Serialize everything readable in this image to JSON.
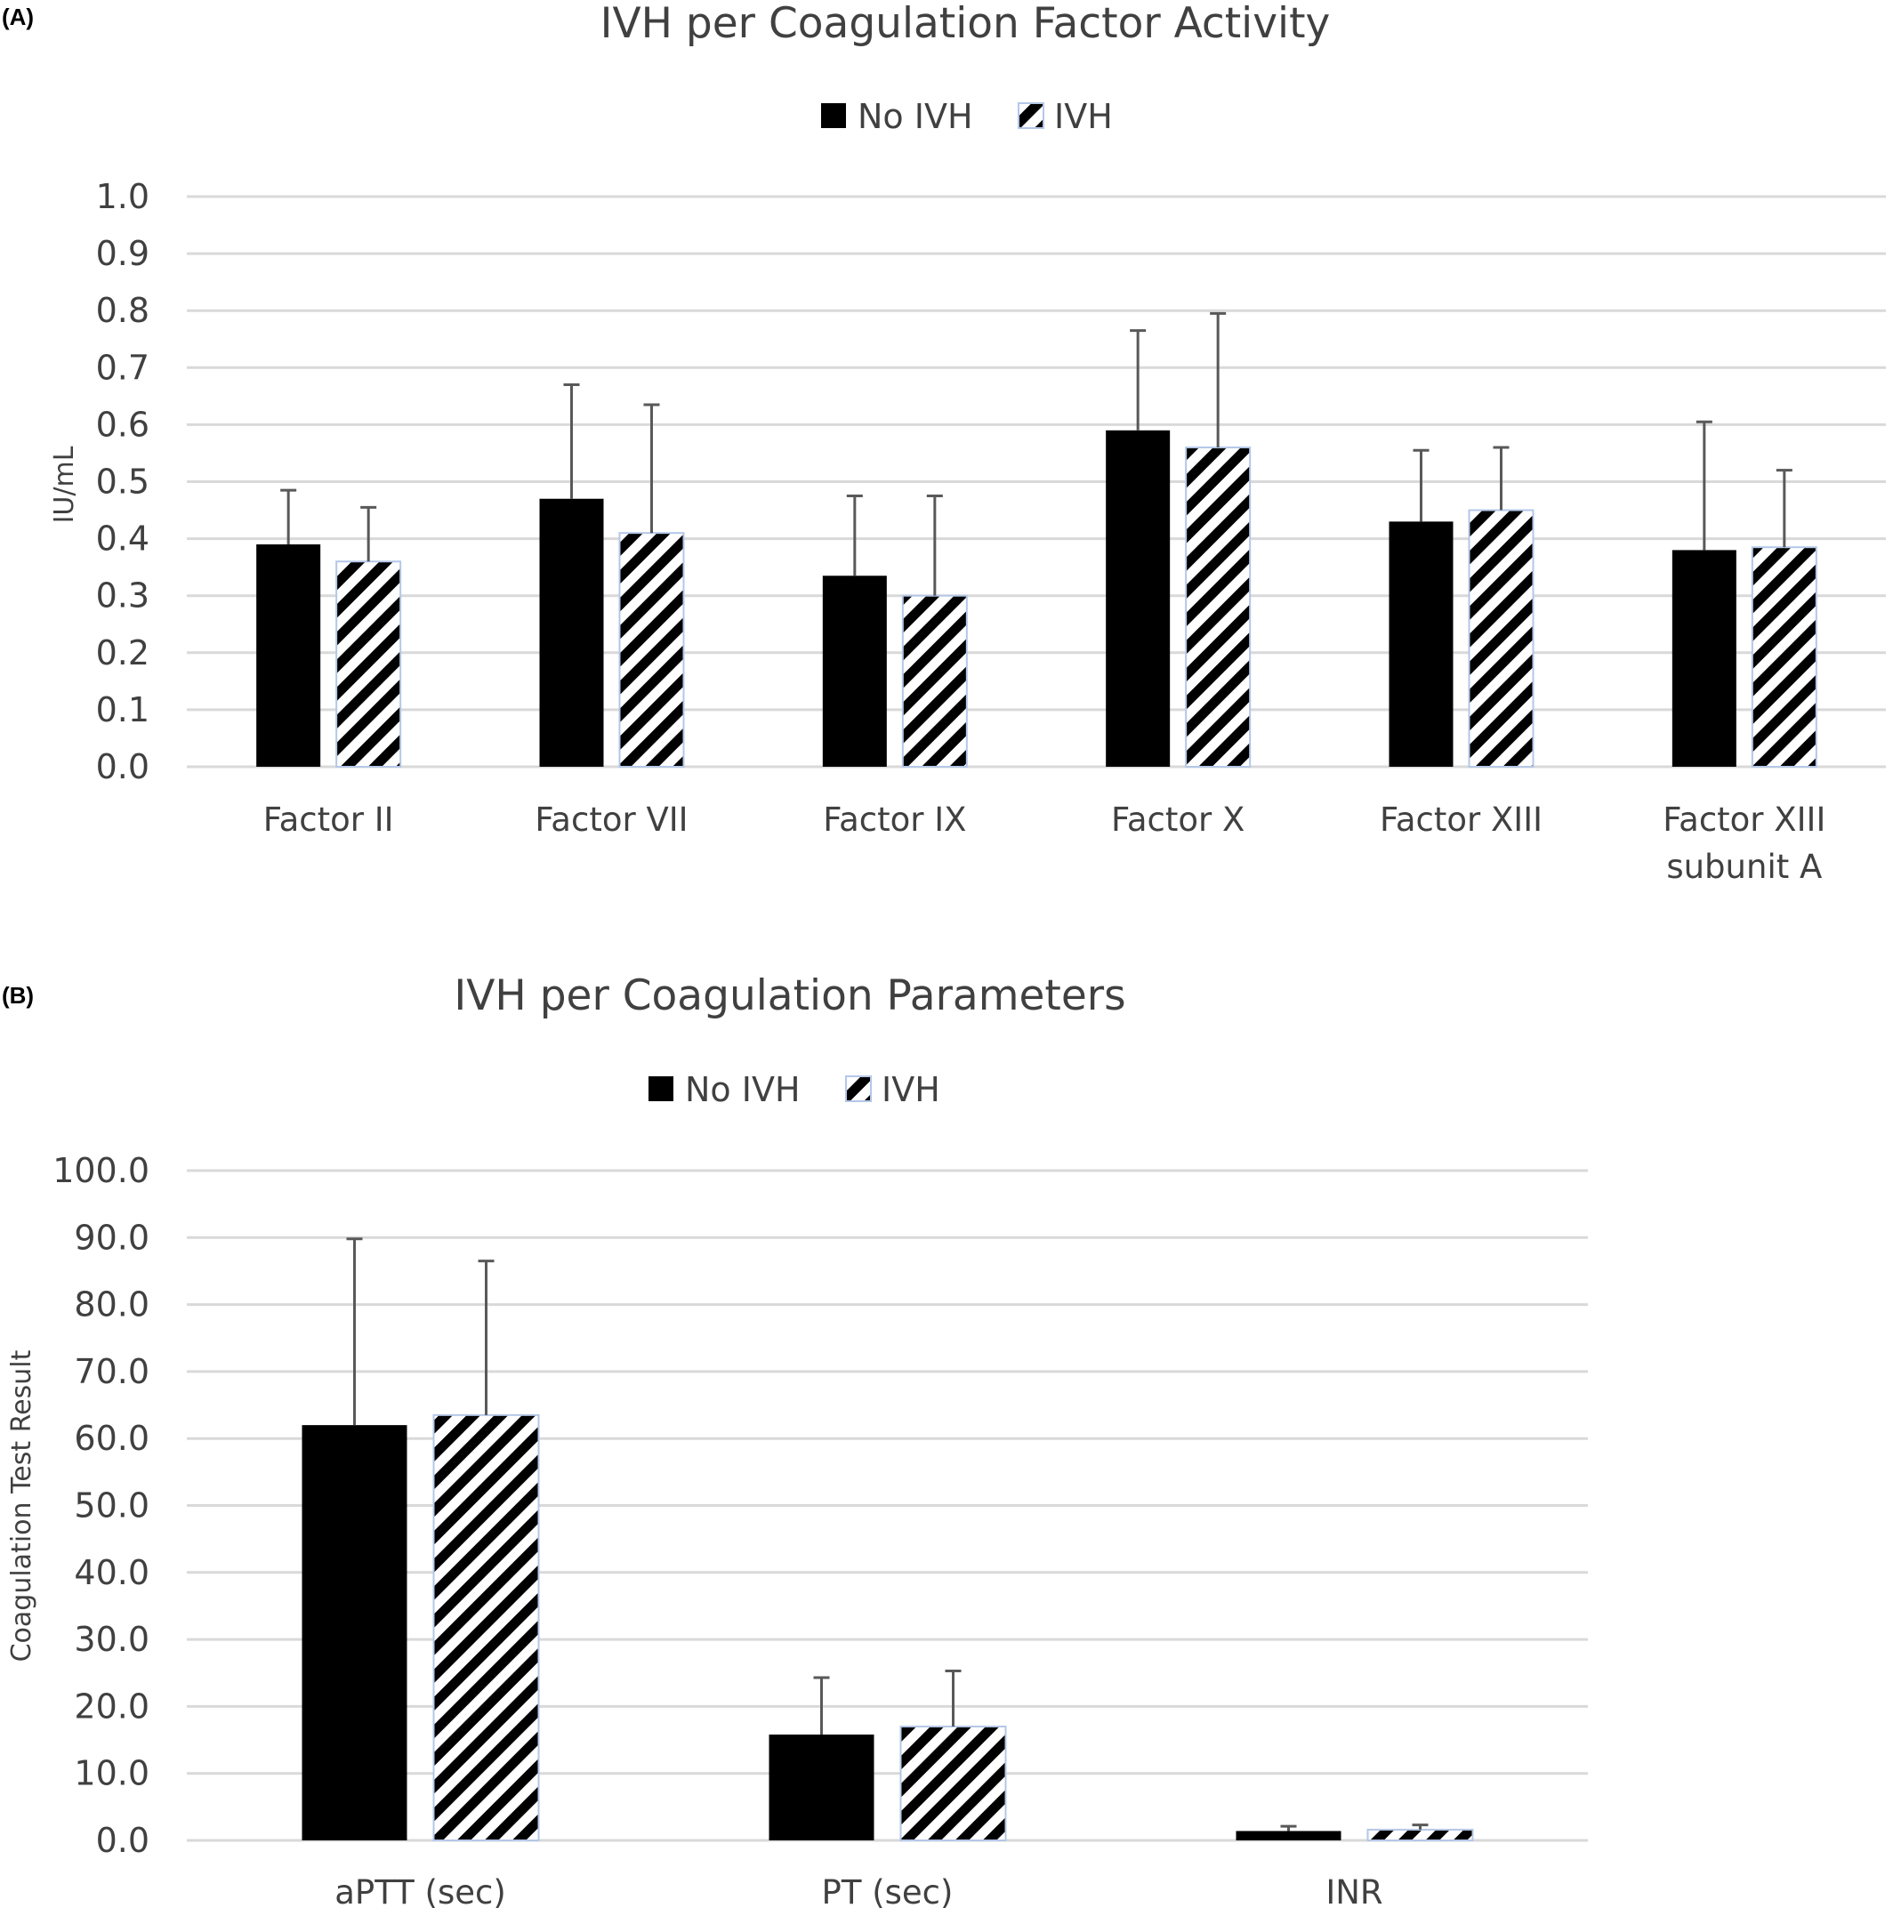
{
  "panels": [
    {
      "panel_label": "(A)",
      "legend": [
        {
          "label": "No IVH",
          "pattern": "solid",
          "color": "#000000"
        },
        {
          "label": "IVH",
          "pattern": "hatch",
          "color": "#000000"
        }
      ],
      "chart_data": {
        "type": "bar",
        "title": "IVH per Coagulation Factor Activity",
        "ylabel": "IU/mL",
        "xlabel": "",
        "ylim": [
          0,
          1.0
        ],
        "yticks": [
          "0.0",
          "0.1",
          "0.2",
          "0.3",
          "0.4",
          "0.5",
          "0.6",
          "0.7",
          "0.8",
          "0.9",
          "1.0"
        ],
        "ytick_values": [
          0,
          0.1,
          0.2,
          0.3,
          0.4,
          0.5,
          0.6,
          0.7,
          0.8,
          0.9,
          1.0
        ],
        "grid": true,
        "legend_position": "top",
        "categories": [
          [
            "Factor II"
          ],
          [
            "Factor VII"
          ],
          [
            "Factor IX"
          ],
          [
            "Factor X"
          ],
          [
            "Factor XIII"
          ],
          [
            "Factor XIII",
            "subunit A"
          ]
        ],
        "series": [
          {
            "name": "No IVH",
            "values": [
              0.39,
              0.47,
              0.335,
              0.59,
              0.43,
              0.38
            ],
            "errors": [
              0.095,
              0.2,
              0.14,
              0.175,
              0.125,
              0.225
            ]
          },
          {
            "name": "IVH",
            "values": [
              0.36,
              0.41,
              0.3,
              0.56,
              0.45,
              0.385
            ],
            "errors": [
              0.095,
              0.225,
              0.175,
              0.235,
              0.11,
              0.135
            ]
          }
        ]
      }
    },
    {
      "panel_label": "(B)",
      "legend": [
        {
          "label": "No IVH",
          "pattern": "solid",
          "color": "#000000"
        },
        {
          "label": "IVH",
          "pattern": "hatch",
          "color": "#000000"
        }
      ],
      "chart_data": {
        "type": "bar",
        "title": "IVH per Coagulation Parameters",
        "ylabel": "Coagulation Test Result",
        "xlabel": "",
        "ylim": [
          0,
          100
        ],
        "yticks": [
          "0.0",
          "10.0",
          "20.0",
          "30.0",
          "40.0",
          "50.0",
          "60.0",
          "70.0",
          "80.0",
          "90.0",
          "100.0"
        ],
        "ytick_values": [
          0,
          10,
          20,
          30,
          40,
          50,
          60,
          70,
          80,
          90,
          100
        ],
        "grid": true,
        "legend_position": "top",
        "categories": [
          [
            "aPTT (sec)"
          ],
          [
            "PT (sec)"
          ],
          [
            "INR"
          ]
        ],
        "series": [
          {
            "name": "No IVH",
            "values": [
              62.0,
              15.8,
              1.4
            ],
            "errors": [
              27.8,
              8.5,
              0.7
            ]
          },
          {
            "name": "IVH",
            "values": [
              63.5,
              17.0,
              1.6
            ],
            "errors": [
              23.0,
              8.3,
              0.7
            ]
          }
        ]
      }
    }
  ]
}
